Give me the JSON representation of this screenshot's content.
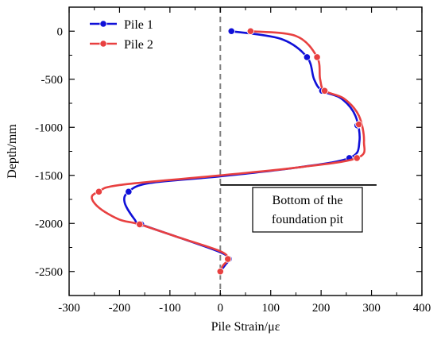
{
  "chart_data": {
    "type": "line",
    "xlabel": "Pile Strain/με",
    "ylabel": "Depth/mm",
    "xlim": [
      -300,
      400
    ],
    "ylim": [
      -2750,
      250
    ],
    "x_ticks": [
      -300,
      -200,
      -100,
      0,
      100,
      200,
      300,
      400
    ],
    "y_ticks": [
      0,
      -500,
      -1000,
      -1500,
      -2000,
      -2500
    ],
    "x_tick_labels": [
      "-300",
      "-200",
      "-100",
      "0",
      "100",
      "200",
      "300",
      "400"
    ],
    "y_tick_labels": [
      "0",
      "-500",
      "-1000",
      "-1500",
      "-2000",
      "-2500"
    ],
    "grid": false,
    "legend_position": "top-left",
    "zero_line": {
      "x": 0,
      "color": "#808080",
      "style": "dashed"
    },
    "series": [
      {
        "name": "Pile 1",
        "color": "#1010d8",
        "markers": [
          {
            "x": 22,
            "y": 0
          },
          {
            "x": 172,
            "y": -270
          },
          {
            "x": 202,
            "y": -620
          },
          {
            "x": 272,
            "y": -980
          },
          {
            "x": 256,
            "y": -1320
          },
          {
            "x": -182,
            "y": -1670
          },
          {
            "x": -157,
            "y": -2010
          },
          {
            "x": 17,
            "y": -2370
          },
          {
            "x": 0,
            "y": -2500
          }
        ],
        "curve": [
          [
            22,
            0
          ],
          [
            120,
            -80
          ],
          [
            172,
            -270
          ],
          [
            186,
            -500
          ],
          [
            202,
            -620
          ],
          [
            240,
            -700
          ],
          [
            268,
            -880
          ],
          [
            276,
            -1150
          ],
          [
            256,
            -1320
          ],
          [
            150,
            -1420
          ],
          [
            0,
            -1510
          ],
          [
            -140,
            -1580
          ],
          [
            -182,
            -1670
          ],
          [
            -190,
            -1780
          ],
          [
            -170,
            -1960
          ],
          [
            -157,
            -2010
          ],
          [
            -80,
            -2150
          ],
          [
            0,
            -2300
          ],
          [
            17,
            -2370
          ],
          [
            10,
            -2430
          ],
          [
            0,
            -2500
          ]
        ]
      },
      {
        "name": "Pile 2",
        "color": "#e84040",
        "markers": [
          {
            "x": 60,
            "y": 0
          },
          {
            "x": 192,
            "y": -270
          },
          {
            "x": 207,
            "y": -620
          },
          {
            "x": 275,
            "y": -970
          },
          {
            "x": 271,
            "y": -1320
          },
          {
            "x": -241,
            "y": -1670
          },
          {
            "x": -160,
            "y": -2010
          },
          {
            "x": 15,
            "y": -2370
          },
          {
            "x": 0,
            "y": -2500
          }
        ],
        "curve": [
          [
            60,
            0
          ],
          [
            150,
            -50
          ],
          [
            192,
            -270
          ],
          [
            198,
            -500
          ],
          [
            207,
            -620
          ],
          [
            245,
            -700
          ],
          [
            275,
            -880
          ],
          [
            285,
            -1150
          ],
          [
            271,
            -1320
          ],
          [
            150,
            -1420
          ],
          [
            0,
            -1500
          ],
          [
            -200,
            -1600
          ],
          [
            -241,
            -1670
          ],
          [
            -255,
            -1730
          ],
          [
            -240,
            -1840
          ],
          [
            -200,
            -1960
          ],
          [
            -160,
            -2010
          ],
          [
            -80,
            -2150
          ],
          [
            0,
            -2290
          ],
          [
            15,
            -2370
          ],
          [
            5,
            -2440
          ],
          [
            0,
            -2500
          ]
        ]
      }
    ],
    "annotations": [
      {
        "lines": [
          "Bottom of the",
          "foundation pit"
        ],
        "line_y": -1600,
        "line_x_start": 0,
        "line_x_end": 310
      }
    ]
  }
}
